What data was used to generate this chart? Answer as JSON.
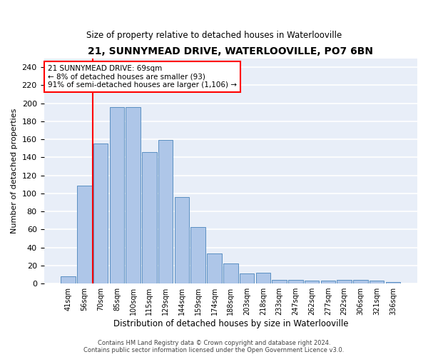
{
  "title": "21, SUNNYMEAD DRIVE, WATERLOOVILLE, PO7 6BN",
  "subtitle": "Size of property relative to detached houses in Waterlooville",
  "xlabel": "Distribution of detached houses by size in Waterlooville",
  "ylabel": "Number of detached properties",
  "categories": [
    "41sqm",
    "56sqm",
    "70sqm",
    "85sqm",
    "100sqm",
    "115sqm",
    "129sqm",
    "144sqm",
    "159sqm",
    "174sqm",
    "188sqm",
    "203sqm",
    "218sqm",
    "233sqm",
    "247sqm",
    "262sqm",
    "277sqm",
    "292sqm",
    "306sqm",
    "321sqm",
    "336sqm"
  ],
  "values": [
    8,
    109,
    155,
    196,
    196,
    146,
    159,
    96,
    63,
    33,
    22,
    11,
    12,
    4,
    4,
    3,
    3,
    4,
    4,
    3,
    2
  ],
  "bar_color": "#aec6e8",
  "bar_edge_color": "#5a8fc2",
  "red_line_index": 2,
  "ylim": [
    0,
    250
  ],
  "yticks": [
    0,
    20,
    40,
    60,
    80,
    100,
    120,
    140,
    160,
    180,
    200,
    220,
    240
  ],
  "annotation_text": "21 SUNNYMEAD DRIVE: 69sqm\n← 8% of detached houses are smaller (93)\n91% of semi-detached houses are larger (1,106) →",
  "annotation_box_color": "white",
  "annotation_box_edge_color": "red",
  "background_color": "#e8eef8",
  "footer_line1": "Contains HM Land Registry data © Crown copyright and database right 2024.",
  "footer_line2": "Contains public sector information licensed under the Open Government Licence v3.0."
}
